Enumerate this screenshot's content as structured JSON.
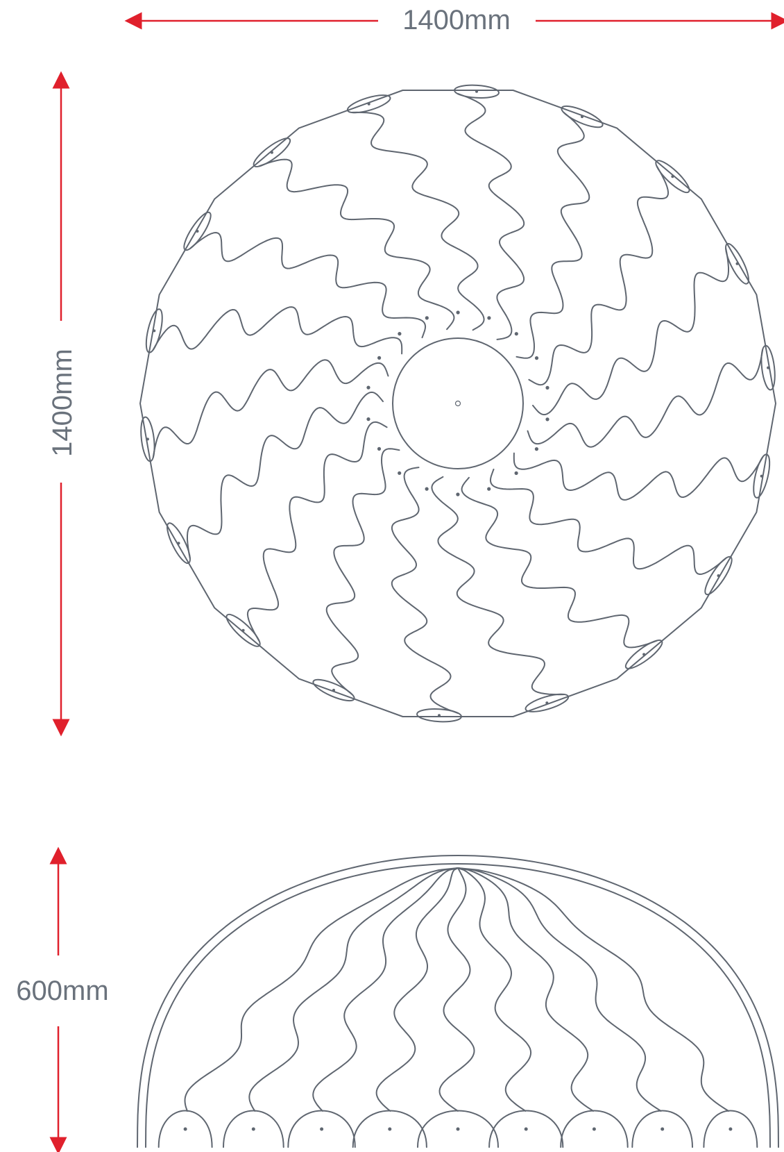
{
  "dimensions": {
    "width_label": "1400mm",
    "depth_label": "1400mm",
    "height_label": "600mm"
  },
  "colors": {
    "dimension_line": "#e0202c",
    "outline": "#5f6670",
    "text": "#6a727c"
  },
  "views": {
    "top_view": {
      "petal_count": 18
    },
    "side_view": {
      "petal_count": 9
    }
  }
}
